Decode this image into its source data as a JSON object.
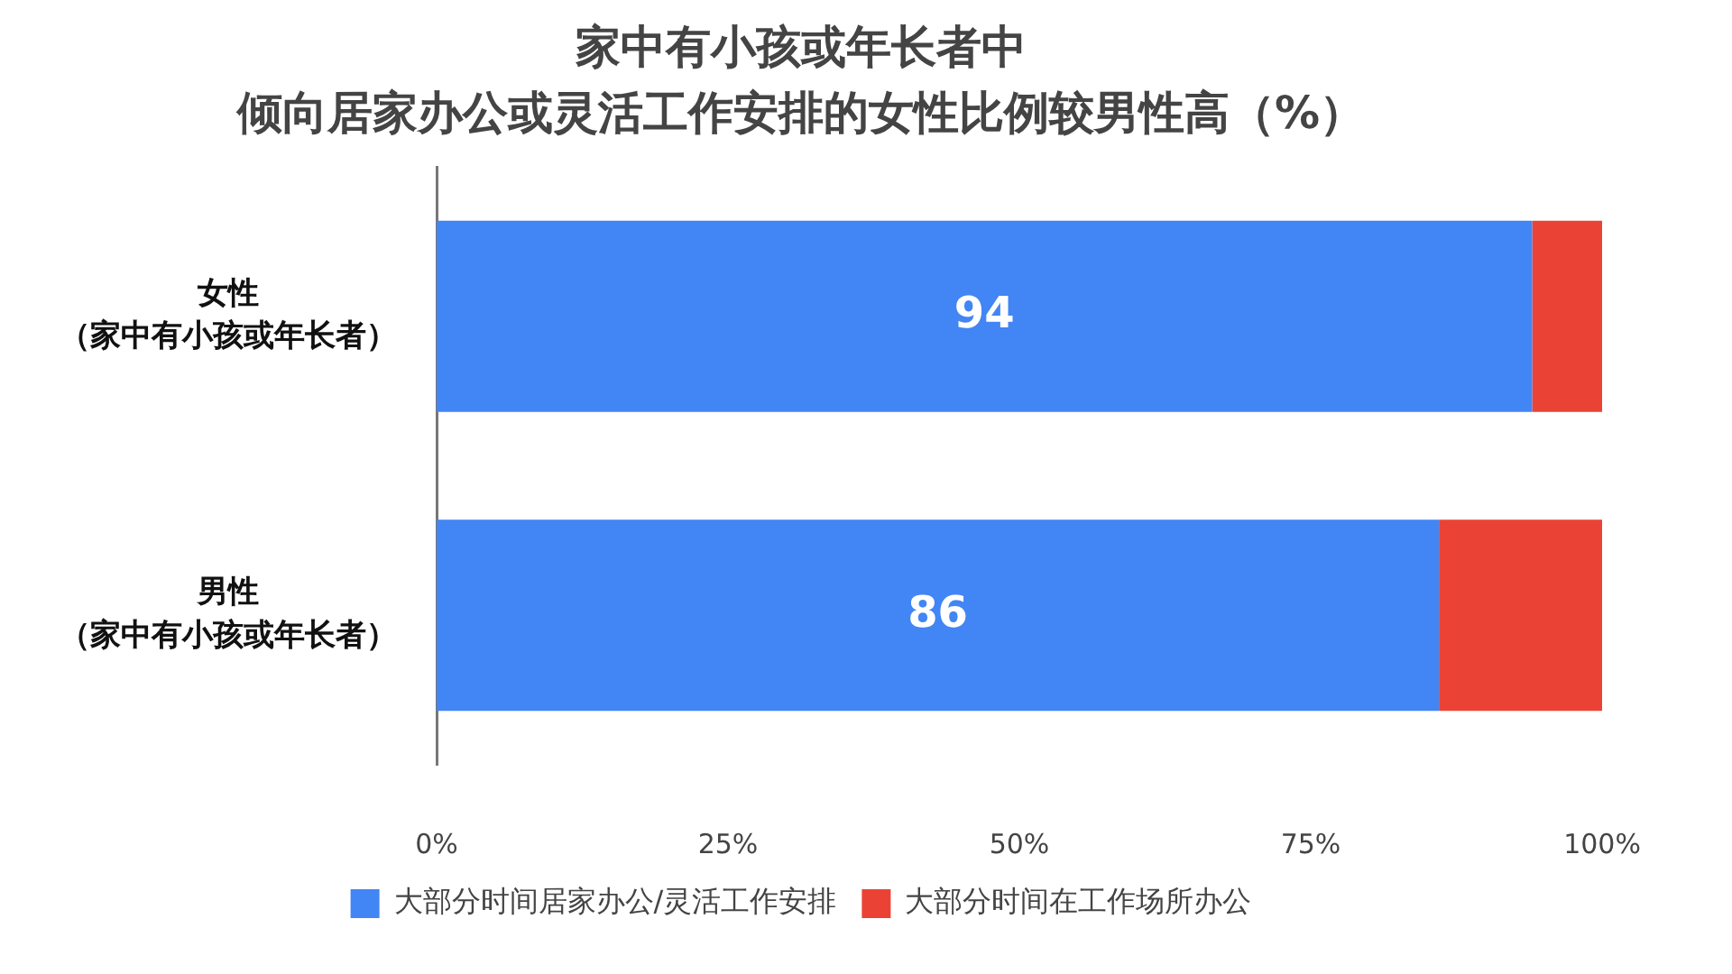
{
  "chart_data": {
    "type": "bar",
    "orientation": "horizontal",
    "stacked": true,
    "title": "家中有小孩或年长者中倾向居家办公或灵活工作安排的女性比例较男性高（%）",
    "categories": [
      "女性（家中有小孩或年长者）",
      "男性（家中有小孩或年长者）"
    ],
    "series": [
      {
        "name": "大部分时间居家办公/灵活工作安排",
        "color": "#4285f4",
        "values": [
          94,
          86
        ],
        "value_labels": [
          "94",
          "86"
        ]
      },
      {
        "name": "大部分时间在工作场所办公",
        "color": "#ea4335",
        "values": [
          6,
          14
        ]
      }
    ],
    "xlim": [
      0,
      100
    ],
    "xticks": [
      {
        "value": 0,
        "label": "0%"
      },
      {
        "value": 25,
        "label": "25%"
      },
      {
        "value": 50,
        "label": "50%"
      },
      {
        "value": 75,
        "label": "75%"
      },
      {
        "value": 100,
        "label": "100%"
      }
    ],
    "grid": false,
    "legend": "bottom"
  }
}
